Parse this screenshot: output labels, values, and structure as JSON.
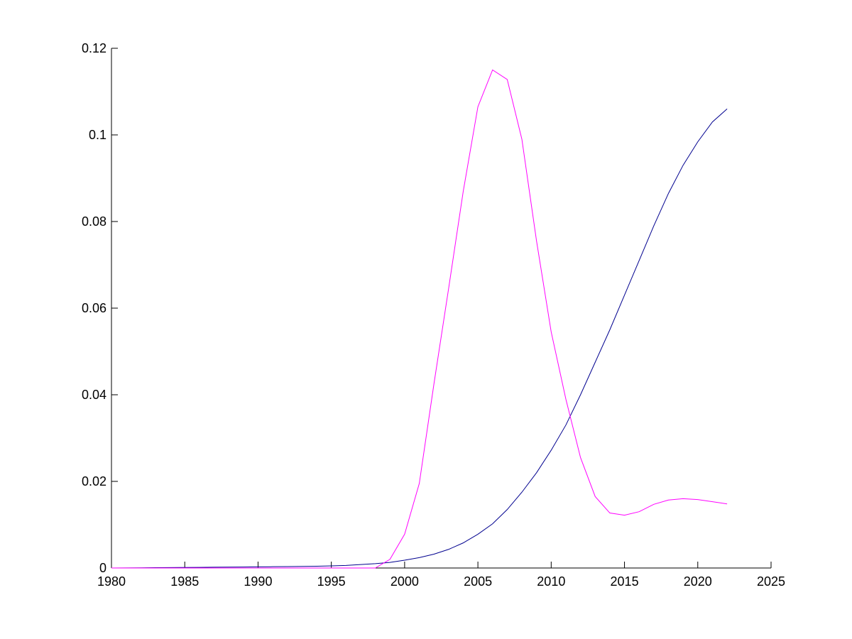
{
  "chart_data": {
    "type": "line",
    "x": [
      1980,
      1981,
      1982,
      1983,
      1984,
      1985,
      1986,
      1987,
      1988,
      1989,
      1990,
      1991,
      1992,
      1993,
      1994,
      1995,
      1996,
      1997,
      1998,
      1999,
      2000,
      2001,
      2002,
      2003,
      2004,
      2005,
      2006,
      2007,
      2008,
      2009,
      2010,
      2011,
      2012,
      2013,
      2014,
      2015,
      2016,
      2017,
      2018,
      2019,
      2020,
      2021,
      2022
    ],
    "series": [
      {
        "color": "#00008f",
        "values": [
          0,
          3e-05,
          5e-05,
          8e-05,
          0.0001,
          0.00012,
          0.00015,
          0.00018,
          0.0002,
          0.00023,
          0.00026,
          0.0003,
          0.00033,
          0.00037,
          0.00042,
          0.0005,
          0.0006,
          0.0008,
          0.001,
          0.0013,
          0.0018,
          0.0024,
          0.0032,
          0.0043,
          0.0058,
          0.0078,
          0.0102,
          0.0135,
          0.0175,
          0.022,
          0.0272,
          0.033,
          0.04,
          0.0475,
          0.055,
          0.063,
          0.071,
          0.079,
          0.0865,
          0.093,
          0.0984,
          0.103,
          0.106
        ]
      },
      {
        "color": "#ff00ff",
        "values": [
          0,
          0,
          0,
          0,
          0,
          0,
          0,
          0,
          0,
          0,
          0,
          0,
          0,
          0,
          0,
          0,
          0,
          0,
          0,
          0.002,
          0.0078,
          0.0195,
          0.0425,
          0.0645,
          0.087,
          0.1065,
          0.115,
          0.1128,
          0.099,
          0.0755,
          0.0545,
          0.039,
          0.0255,
          0.0165,
          0.0127,
          0.0122,
          0.013,
          0.0147,
          0.0157,
          0.016,
          0.0158,
          0.0153,
          0.0148
        ]
      }
    ],
    "xlim": [
      1980,
      2025
    ],
    "xticks": [
      1980,
      1985,
      1990,
      1995,
      2000,
      2005,
      2010,
      2015,
      2020,
      2025
    ],
    "ylim": [
      0,
      0.12
    ],
    "yticks": [
      0,
      0.02,
      0.04,
      0.06,
      0.08,
      0.1,
      0.12
    ]
  }
}
